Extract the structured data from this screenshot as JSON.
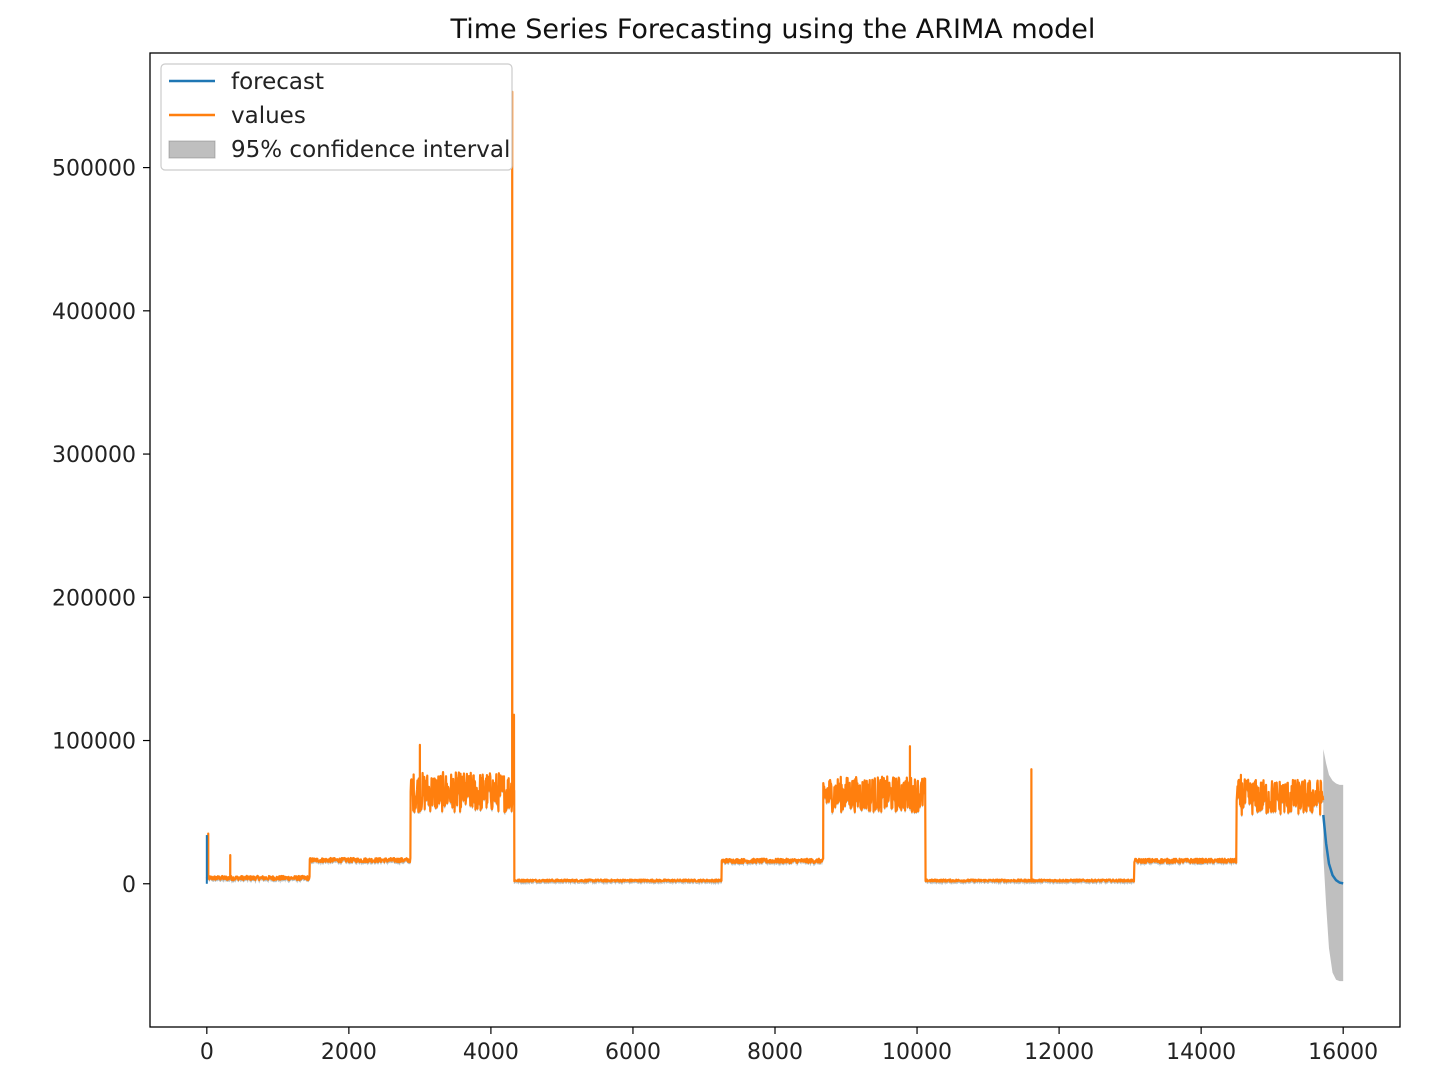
{
  "chart_data": {
    "type": "line",
    "title": "Time Series Forecasting using the ARIMA model",
    "xlabel": "",
    "ylabel": "",
    "xlim": [
      -800,
      16800
    ],
    "ylim": [
      -100000,
      580000
    ],
    "x_ticks": [
      0,
      2000,
      4000,
      6000,
      8000,
      10000,
      12000,
      14000,
      16000
    ],
    "x_tick_labels": [
      "0",
      "2000",
      "4000",
      "6000",
      "8000",
      "10000",
      "12000",
      "14000",
      "16000"
    ],
    "y_ticks": [
      0,
      100000,
      200000,
      300000,
      400000,
      500000
    ],
    "y_tick_labels": [
      "0",
      "100000",
      "200000",
      "300000",
      "400000",
      "500000"
    ],
    "grid": false,
    "legend_position": "top-left",
    "legend": [
      {
        "label": "forecast",
        "kind": "line",
        "color": "#1f77b4"
      },
      {
        "label": "values",
        "kind": "line",
        "color": "#ff7f0e"
      },
      {
        "label": "95% confidence interval",
        "kind": "patch",
        "color": "#808080"
      }
    ],
    "series": [
      {
        "name": "values",
        "color": "#ff7f0e",
        "segments": [
          {
            "x_start": 0,
            "x_end": 1450,
            "base": 2500,
            "noise_low": 0,
            "noise_high": 3000
          },
          {
            "x_start": 1450,
            "x_end": 2870,
            "base": 15000,
            "noise_low": 0,
            "noise_high": 3000
          },
          {
            "x_start": 2870,
            "x_end": 4330,
            "base": 60000,
            "noise_low": -10000,
            "noise_high": 18000
          },
          {
            "x_start": 4330,
            "x_end": 7250,
            "base": 1500,
            "noise_low": 0,
            "noise_high": 1500
          },
          {
            "x_start": 7250,
            "x_end": 8680,
            "base": 14500,
            "noise_low": 0,
            "noise_high": 3000
          },
          {
            "x_start": 8680,
            "x_end": 10120,
            "base": 60000,
            "noise_low": -10000,
            "noise_high": 15000
          },
          {
            "x_start": 10120,
            "x_end": 13060,
            "base": 1500,
            "noise_low": 0,
            "noise_high": 1500
          },
          {
            "x_start": 13060,
            "x_end": 14500,
            "base": 14500,
            "noise_low": 0,
            "noise_high": 3000
          },
          {
            "x_start": 14500,
            "x_end": 15720,
            "base": 58000,
            "noise_low": -10000,
            "noise_high": 15000
          }
        ],
        "spikes": [
          {
            "x": 20,
            "y": 35000
          },
          {
            "x": 330,
            "y": 20000
          },
          {
            "x": 3000,
            "y": 97000
          },
          {
            "x": 4300,
            "y": 553000
          },
          {
            "x": 4325,
            "y": 118000
          },
          {
            "x": 9900,
            "y": 96000
          },
          {
            "x": 11610,
            "y": 80000
          },
          {
            "x": 14560,
            "y": 76000
          }
        ]
      },
      {
        "name": "forecast",
        "color": "#1f77b4",
        "x": [
          15720,
          15760,
          15800,
          15850,
          15900,
          15950,
          16000
        ],
        "y": [
          48000,
          28000,
          14000,
          6000,
          2500,
          800,
          300
        ]
      }
    ],
    "confidence_interval": {
      "label": "95% confidence interval",
      "color": "#808080",
      "x": [
        15720,
        15760,
        15800,
        15850,
        15900,
        15950,
        16000
      ],
      "upper": [
        94000,
        84000,
        76000,
        72000,
        70000,
        69000,
        69000
      ],
      "lower": [
        20000,
        -15000,
        -45000,
        -62000,
        -67000,
        -68000,
        -68000
      ]
    }
  }
}
